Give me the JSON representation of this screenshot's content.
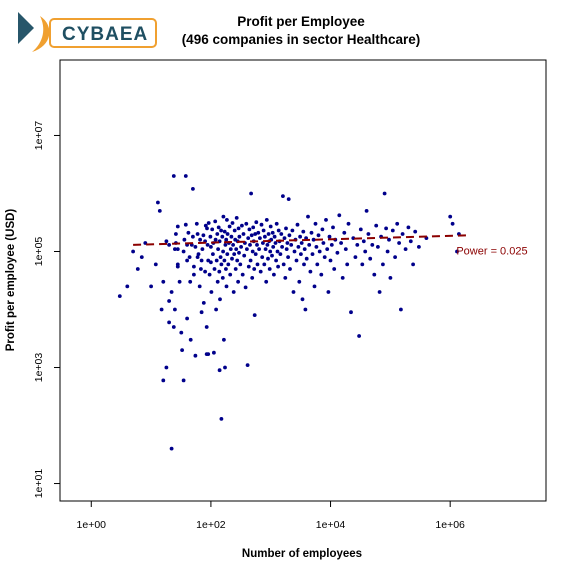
{
  "brand": {
    "name": "CYBAEA",
    "text_color": "#1f4f62",
    "accent": "#f0a030",
    "mark_color": "#27566a"
  },
  "chart_data": {
    "type": "scatter",
    "title": "Profit per Employee",
    "subtitle": "(496 companies in sector Healthcare)",
    "xlabel": "Number of employees",
    "ylabel": "Profit per employee (USD)",
    "x_scale": "log10",
    "y_scale": "log10",
    "xlim": [
      0.3,
      40000000
    ],
    "ylim": [
      5,
      200000000
    ],
    "x_ticks": [
      {
        "value": 1,
        "label": "1e+00"
      },
      {
        "value": 100,
        "label": "1e+02"
      },
      {
        "value": 10000,
        "label": "1e+04"
      },
      {
        "value": 1000000,
        "label": "1e+06"
      }
    ],
    "y_ticks": [
      {
        "value": 10,
        "label": "1e+01"
      },
      {
        "value": 1000,
        "label": "1e+03"
      },
      {
        "value": 100000,
        "label": "1e+05"
      },
      {
        "value": 10000000,
        "label": "1e+07"
      }
    ],
    "point_color": "#00008b",
    "trend_color": "#8b0000",
    "trend": {
      "x": [
        5,
        2000000
      ],
      "y": [
        130000,
        190000
      ],
      "style": "dashed"
    },
    "annotation": {
      "text": "Power =  0.025",
      "x": 5000000,
      "y": 100000
    },
    "points": [
      [
        3,
        17000
      ],
      [
        4,
        25000
      ],
      [
        5,
        100000
      ],
      [
        6,
        50000
      ],
      [
        7,
        80000
      ],
      [
        8,
        140000
      ],
      [
        10,
        25000
      ],
      [
        12,
        60000
      ],
      [
        13,
        700000
      ],
      [
        14,
        500000
      ],
      [
        15,
        10000
      ],
      [
        16,
        30000
      ],
      [
        16,
        600
      ],
      [
        18,
        150000
      ],
      [
        18,
        1000
      ],
      [
        20,
        130000
      ],
      [
        20,
        6000
      ],
      [
        20,
        14000
      ],
      [
        22,
        20000
      ],
      [
        22,
        40
      ],
      [
        24,
        2000000
      ],
      [
        24,
        5000
      ],
      [
        25,
        10000
      ],
      [
        25,
        110000
      ],
      [
        26,
        140000
      ],
      [
        26,
        200000
      ],
      [
        28,
        55000
      ],
      [
        28,
        60000
      ],
      [
        28,
        110000
      ],
      [
        28,
        270000
      ],
      [
        30,
        30000
      ],
      [
        32,
        4000
      ],
      [
        33,
        2000
      ],
      [
        35,
        600
      ],
      [
        35,
        100000
      ],
      [
        36,
        160000
      ],
      [
        38,
        2000000
      ],
      [
        38,
        290000
      ],
      [
        40,
        7000
      ],
      [
        40,
        70000
      ],
      [
        40,
        130000
      ],
      [
        42,
        210000
      ],
      [
        44,
        80000
      ],
      [
        45,
        30000
      ],
      [
        46,
        3000
      ],
      [
        48,
        130000
      ],
      [
        50,
        1200000
      ],
      [
        50,
        180000
      ],
      [
        52,
        40000
      ],
      [
        52,
        55000
      ],
      [
        55,
        120000
      ],
      [
        55,
        1600
      ],
      [
        58,
        300000
      ],
      [
        60,
        80000
      ],
      [
        60,
        200000
      ],
      [
        62,
        90000
      ],
      [
        65,
        25000
      ],
      [
        66,
        160000
      ],
      [
        68,
        50000
      ],
      [
        70,
        70000
      ],
      [
        70,
        9000
      ],
      [
        72,
        110000
      ],
      [
        75,
        190000
      ],
      [
        76,
        13000
      ],
      [
        80,
        45000
      ],
      [
        80,
        150000
      ],
      [
        82,
        280000
      ],
      [
        85,
        1700
      ],
      [
        85,
        5000
      ],
      [
        86,
        250000
      ],
      [
        88,
        130000
      ],
      [
        90,
        1700
      ],
      [
        90,
        70000
      ],
      [
        92,
        310000
      ],
      [
        95,
        40000
      ],
      [
        98,
        180000
      ],
      [
        100,
        120000
      ],
      [
        100,
        65000
      ],
      [
        102,
        20000
      ],
      [
        105,
        240000
      ],
      [
        108,
        90000
      ],
      [
        110,
        140000
      ],
      [
        112,
        1800
      ],
      [
        115,
        50000
      ],
      [
        118,
        330000
      ],
      [
        120,
        160000
      ],
      [
        122,
        10000
      ],
      [
        125,
        70000
      ],
      [
        128,
        200000
      ],
      [
        130,
        30000
      ],
      [
        132,
        110000
      ],
      [
        135,
        260000
      ],
      [
        138,
        45000
      ],
      [
        140,
        900
      ],
      [
        140,
        150000
      ],
      [
        142,
        15000
      ],
      [
        145,
        80000
      ],
      [
        148,
        230000
      ],
      [
        150,
        130
      ],
      [
        150,
        60000
      ],
      [
        155,
        180000
      ],
      [
        158,
        35000
      ],
      [
        160,
        100000
      ],
      [
        162,
        400000
      ],
      [
        165,
        3000
      ],
      [
        168,
        70000
      ],
      [
        170,
        220000
      ],
      [
        172,
        1000
      ],
      [
        175,
        130000
      ],
      [
        178,
        50000
      ],
      [
        180,
        160000
      ],
      [
        182,
        25000
      ],
      [
        185,
        350000
      ],
      [
        188,
        90000
      ],
      [
        190,
        200000
      ],
      [
        195,
        60000
      ],
      [
        200,
        140000
      ],
      [
        205,
        270000
      ],
      [
        210,
        40000
      ],
      [
        215,
        110000
      ],
      [
        220,
        180000
      ],
      [
        225,
        75000
      ],
      [
        230,
        310000
      ],
      [
        235,
        130000
      ],
      [
        240,
        20000
      ],
      [
        245,
        90000
      ],
      [
        250,
        230000
      ],
      [
        255,
        160000
      ],
      [
        260,
        50000
      ],
      [
        265,
        110000
      ],
      [
        270,
        380000
      ],
      [
        275,
        70000
      ],
      [
        280,
        150000
      ],
      [
        285,
        30000
      ],
      [
        290,
        250000
      ],
      [
        295,
        95000
      ],
      [
        300,
        180000
      ],
      [
        310,
        60000
      ],
      [
        320,
        120000
      ],
      [
        330,
        280000
      ],
      [
        340,
        40000
      ],
      [
        350,
        200000
      ],
      [
        360,
        85000
      ],
      [
        370,
        140000
      ],
      [
        380,
        24000
      ],
      [
        390,
        300000
      ],
      [
        400,
        110000
      ],
      [
        410,
        1100
      ],
      [
        420,
        170000
      ],
      [
        430,
        55000
      ],
      [
        440,
        240000
      ],
      [
        450,
        130000
      ],
      [
        460,
        70000
      ],
      [
        470,
        1000000
      ],
      [
        480,
        190000
      ],
      [
        490,
        35000
      ],
      [
        500,
        100000
      ],
      [
        510,
        260000
      ],
      [
        520,
        150000
      ],
      [
        530,
        50000
      ],
      [
        540,
        8000
      ],
      [
        550,
        200000
      ],
      [
        560,
        90000
      ],
      [
        575,
        320000
      ],
      [
        590,
        130000
      ],
      [
        600,
        60000
      ],
      [
        620,
        210000
      ],
      [
        640,
        110000
      ],
      [
        660,
        170000
      ],
      [
        680,
        45000
      ],
      [
        700,
        290000
      ],
      [
        720,
        80000
      ],
      [
        740,
        140000
      ],
      [
        760,
        230000
      ],
      [
        780,
        60000
      ],
      [
        800,
        180000
      ],
      [
        820,
        110000
      ],
      [
        840,
        30000
      ],
      [
        860,
        350000
      ],
      [
        880,
        130000
      ],
      [
        900,
        75000
      ],
      [
        920,
        200000
      ],
      [
        940,
        150000
      ],
      [
        960,
        50000
      ],
      [
        980,
        100000
      ],
      [
        1000,
        270000
      ],
      [
        1020,
        160000
      ],
      [
        1050,
        85000
      ],
      [
        1080,
        210000
      ],
      [
        1100,
        120000
      ],
      [
        1130,
        40000
      ],
      [
        1160,
        180000
      ],
      [
        1200,
        140000
      ],
      [
        1230,
        70000
      ],
      [
        1260,
        300000
      ],
      [
        1300,
        100000
      ],
      [
        1330,
        55000
      ],
      [
        1360,
        230000
      ],
      [
        1400,
        150000
      ],
      [
        1450,
        90000
      ],
      [
        1500,
        200000
      ],
      [
        1550,
        120000
      ],
      [
        1600,
        900000
      ],
      [
        1650,
        60000
      ],
      [
        1700,
        170000
      ],
      [
        1750,
        35000
      ],
      [
        1800,
        250000
      ],
      [
        1850,
        110000
      ],
      [
        1900,
        140000
      ],
      [
        1950,
        80000
      ],
      [
        2000,
        800000
      ],
      [
        2050,
        190000
      ],
      [
        2100,
        50000
      ],
      [
        2200,
        130000
      ],
      [
        2300,
        230000
      ],
      [
        2400,
        20000
      ],
      [
        2500,
        100000
      ],
      [
        2600,
        160000
      ],
      [
        2700,
        70000
      ],
      [
        2800,
        290000
      ],
      [
        2900,
        120000
      ],
      [
        3000,
        30000
      ],
      [
        3100,
        180000
      ],
      [
        3200,
        90000
      ],
      [
        3300,
        140000
      ],
      [
        3400,
        15000
      ],
      [
        3500,
        220000
      ],
      [
        3600,
        60000
      ],
      [
        3700,
        110000
      ],
      [
        3800,
        10000
      ],
      [
        3900,
        170000
      ],
      [
        4000,
        75000
      ],
      [
        4200,
        400000
      ],
      [
        4400,
        130000
      ],
      [
        4600,
        45000
      ],
      [
        4800,
        210000
      ],
      [
        5000,
        90000
      ],
      [
        5200,
        160000
      ],
      [
        5400,
        25000
      ],
      [
        5600,
        300000
      ],
      [
        5800,
        120000
      ],
      [
        6000,
        60000
      ],
      [
        6300,
        190000
      ],
      [
        6600,
        100000
      ],
      [
        7000,
        40000
      ],
      [
        7300,
        240000
      ],
      [
        7600,
        140000
      ],
      [
        8000,
        80000
      ],
      [
        8400,
        350000
      ],
      [
        8800,
        110000
      ],
      [
        9200,
        20000
      ],
      [
        9600,
        180000
      ],
      [
        10000,
        70000
      ],
      [
        10500,
        130000
      ],
      [
        11000,
        260000
      ],
      [
        11500,
        50000
      ],
      [
        12000,
        160000
      ],
      [
        13000,
        95000
      ],
      [
        14000,
        420000
      ],
      [
        15000,
        140000
      ],
      [
        16000,
        35000
      ],
      [
        17000,
        210000
      ],
      [
        18000,
        110000
      ],
      [
        19000,
        60000
      ],
      [
        20000,
        300000
      ],
      [
        22000,
        9000
      ],
      [
        24000,
        170000
      ],
      [
        26000,
        80000
      ],
      [
        28000,
        130000
      ],
      [
        30000,
        3500
      ],
      [
        32000,
        240000
      ],
      [
        34000,
        60000
      ],
      [
        36000,
        150000
      ],
      [
        38000,
        100000
      ],
      [
        40000,
        500000
      ],
      [
        43000,
        200000
      ],
      [
        46000,
        75000
      ],
      [
        50000,
        130000
      ],
      [
        54000,
        40000
      ],
      [
        58000,
        280000
      ],
      [
        62000,
        120000
      ],
      [
        66000,
        20000
      ],
      [
        70000,
        180000
      ],
      [
        75000,
        60000
      ],
      [
        80000,
        1000000
      ],
      [
        85000,
        250000
      ],
      [
        90000,
        100000
      ],
      [
        95000,
        160000
      ],
      [
        100000,
        35000
      ],
      [
        110000,
        230000
      ],
      [
        120000,
        80000
      ],
      [
        130000,
        300000
      ],
      [
        140000,
        140000
      ],
      [
        150000,
        10000
      ],
      [
        160000,
        200000
      ],
      [
        180000,
        110000
      ],
      [
        200000,
        260000
      ],
      [
        220000,
        150000
      ],
      [
        240000,
        60000
      ],
      [
        260000,
        220000
      ],
      [
        300000,
        120000
      ],
      [
        400000,
        170000
      ],
      [
        1000000,
        400000
      ],
      [
        1100000,
        300000
      ],
      [
        1300000,
        100000
      ],
      [
        1400000,
        200000
      ]
    ]
  }
}
